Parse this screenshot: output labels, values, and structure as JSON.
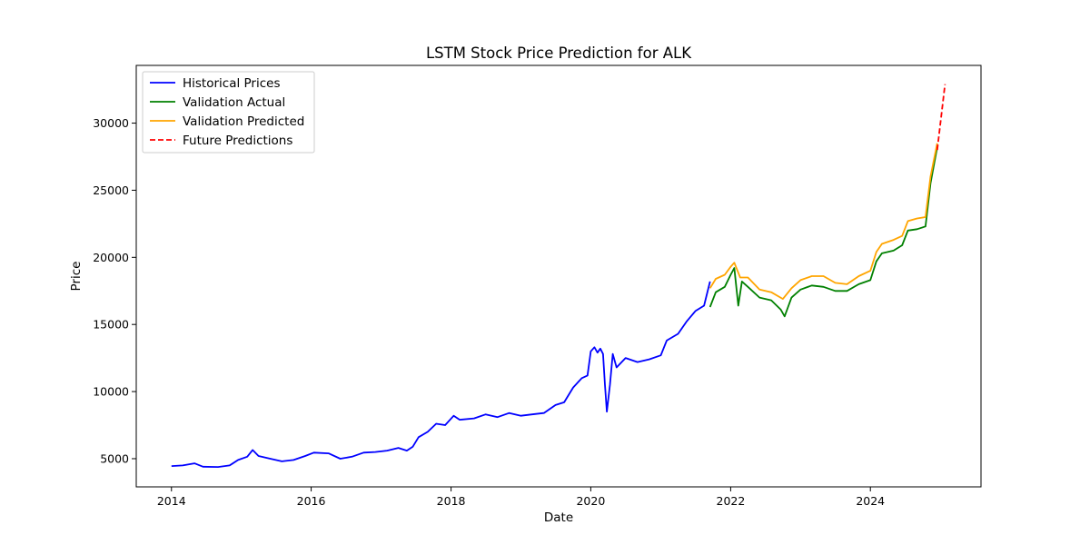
{
  "chart_data": {
    "type": "line",
    "title": "LSTM Stock Price Prediction for ALK",
    "xlabel": "Date",
    "ylabel": "Price",
    "xlim": [
      "2013-07-01",
      "2025-08-01"
    ],
    "ylim": [
      2900,
      34300
    ],
    "x_ticks": [
      "2014",
      "2016",
      "2018",
      "2020",
      "2022",
      "2024"
    ],
    "y_ticks": [
      5000,
      10000,
      15000,
      20000,
      25000,
      30000
    ],
    "grid": false,
    "legend_position": "upper-left",
    "series": [
      {
        "name": "Historical Prices",
        "color": "#0000ff",
        "dash": "solid",
        "points": [
          [
            "2014-01-01",
            4450
          ],
          [
            "2014-03-01",
            4500
          ],
          [
            "2014-05-01",
            4650
          ],
          [
            "2014-06-15",
            4400
          ],
          [
            "2014-09-01",
            4380
          ],
          [
            "2014-11-01",
            4500
          ],
          [
            "2014-12-15",
            4900
          ],
          [
            "2015-02-01",
            5150
          ],
          [
            "2015-03-01",
            5650
          ],
          [
            "2015-04-01",
            5200
          ],
          [
            "2015-06-01",
            5000
          ],
          [
            "2015-08-01",
            4800
          ],
          [
            "2015-10-01",
            4900
          ],
          [
            "2015-12-01",
            5200
          ],
          [
            "2016-01-15",
            5450
          ],
          [
            "2016-04-01",
            5400
          ],
          [
            "2016-06-01",
            5000
          ],
          [
            "2016-08-01",
            5150
          ],
          [
            "2016-10-01",
            5450
          ],
          [
            "2016-12-01",
            5500
          ],
          [
            "2017-02-01",
            5600
          ],
          [
            "2017-04-01",
            5800
          ],
          [
            "2017-05-15",
            5600
          ],
          [
            "2017-06-15",
            5900
          ],
          [
            "2017-07-15",
            6600
          ],
          [
            "2017-09-01",
            7000
          ],
          [
            "2017-10-15",
            7600
          ],
          [
            "2017-12-01",
            7500
          ],
          [
            "2018-01-15",
            8200
          ],
          [
            "2018-02-15",
            7900
          ],
          [
            "2018-05-01",
            8000
          ],
          [
            "2018-07-01",
            8300
          ],
          [
            "2018-09-01",
            8100
          ],
          [
            "2018-11-01",
            8400
          ],
          [
            "2019-01-01",
            8200
          ],
          [
            "2019-03-01",
            8300
          ],
          [
            "2019-05-01",
            8400
          ],
          [
            "2019-07-01",
            9000
          ],
          [
            "2019-08-15",
            9200
          ],
          [
            "2019-10-01",
            10300
          ],
          [
            "2019-11-15",
            11000
          ],
          [
            "2019-12-15",
            11200
          ],
          [
            "2020-01-01",
            13000
          ],
          [
            "2020-01-20",
            13300
          ],
          [
            "2020-02-05",
            12900
          ],
          [
            "2020-02-20",
            13200
          ],
          [
            "2020-03-05",
            12800
          ],
          [
            "2020-03-15",
            10500
          ],
          [
            "2020-03-25",
            8500
          ],
          [
            "2020-04-10",
            10500
          ],
          [
            "2020-04-25",
            12800
          ],
          [
            "2020-05-15",
            11800
          ],
          [
            "2020-07-01",
            12500
          ],
          [
            "2020-09-01",
            12200
          ],
          [
            "2020-11-01",
            12400
          ],
          [
            "2021-01-01",
            12700
          ],
          [
            "2021-02-01",
            13800
          ],
          [
            "2021-04-01",
            14300
          ],
          [
            "2021-05-15",
            15200
          ],
          [
            "2021-07-01",
            16000
          ],
          [
            "2021-08-15",
            16400
          ],
          [
            "2021-09-15",
            18200
          ]
        ]
      },
      {
        "name": "Validation Actual",
        "color": "#008000",
        "dash": "solid",
        "points": [
          [
            "2021-09-15",
            16300
          ],
          [
            "2021-10-15",
            17400
          ],
          [
            "2021-12-01",
            17800
          ],
          [
            "2022-01-01",
            18700
          ],
          [
            "2022-01-20",
            19200
          ],
          [
            "2022-02-10",
            16400
          ],
          [
            "2022-03-01",
            18200
          ],
          [
            "2022-04-01",
            17800
          ],
          [
            "2022-06-01",
            17000
          ],
          [
            "2022-08-01",
            16800
          ],
          [
            "2022-09-20",
            16100
          ],
          [
            "2022-10-10",
            15600
          ],
          [
            "2022-11-15",
            17000
          ],
          [
            "2023-01-01",
            17600
          ],
          [
            "2023-03-01",
            17900
          ],
          [
            "2023-05-01",
            17800
          ],
          [
            "2023-07-01",
            17500
          ],
          [
            "2023-09-01",
            17500
          ],
          [
            "2023-11-01",
            18000
          ],
          [
            "2024-01-01",
            18300
          ],
          [
            "2024-02-01",
            19700
          ],
          [
            "2024-03-01",
            20300
          ],
          [
            "2024-05-01",
            20500
          ],
          [
            "2024-06-15",
            20900
          ],
          [
            "2024-07-15",
            22000
          ],
          [
            "2024-09-01",
            22100
          ],
          [
            "2024-10-15",
            22300
          ],
          [
            "2024-11-10",
            25500
          ],
          [
            "2024-12-15",
            28200
          ]
        ]
      },
      {
        "name": "Validation Predicted",
        "color": "#ffa500",
        "dash": "solid",
        "points": [
          [
            "2021-09-15",
            17700
          ],
          [
            "2021-10-15",
            18400
          ],
          [
            "2021-12-01",
            18700
          ],
          [
            "2022-01-01",
            19300
          ],
          [
            "2022-01-20",
            19600
          ],
          [
            "2022-02-20",
            18500
          ],
          [
            "2022-04-01",
            18500
          ],
          [
            "2022-06-01",
            17600
          ],
          [
            "2022-08-01",
            17400
          ],
          [
            "2022-10-01",
            16900
          ],
          [
            "2022-11-15",
            17700
          ],
          [
            "2023-01-01",
            18300
          ],
          [
            "2023-03-01",
            18600
          ],
          [
            "2023-05-01",
            18600
          ],
          [
            "2023-07-01",
            18100
          ],
          [
            "2023-09-01",
            18000
          ],
          [
            "2023-11-01",
            18600
          ],
          [
            "2024-01-01",
            19000
          ],
          [
            "2024-02-01",
            20400
          ],
          [
            "2024-03-01",
            21000
          ],
          [
            "2024-05-01",
            21300
          ],
          [
            "2024-06-15",
            21600
          ],
          [
            "2024-07-15",
            22700
          ],
          [
            "2024-09-01",
            22900
          ],
          [
            "2024-10-15",
            23000
          ],
          [
            "2024-11-10",
            26000
          ],
          [
            "2024-12-15",
            28500
          ]
        ]
      },
      {
        "name": "Future Predictions",
        "color": "#ff0000",
        "dash": "dashed",
        "points": [
          [
            "2024-12-15",
            28000
          ],
          [
            "2025-01-05",
            30500
          ],
          [
            "2025-01-25",
            32900
          ]
        ]
      }
    ]
  }
}
